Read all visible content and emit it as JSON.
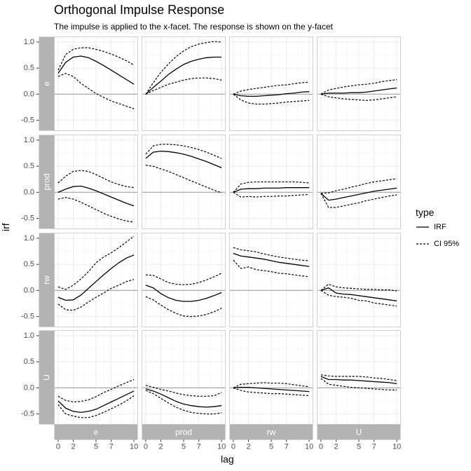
{
  "title": "Orthogonal Impulse Response",
  "subtitle": "The impulse is applied to the x-facet. The response is shown on the y-facet",
  "legend": {
    "title": "type",
    "entries": [
      {
        "label": "IRF",
        "style": "solid"
      },
      {
        "label": "CI 95%",
        "style": "dashed"
      }
    ]
  },
  "chart_data": {
    "type": "line",
    "facets": {
      "columns": [
        "e",
        "prod",
        "rw",
        "U"
      ],
      "rows": [
        "e",
        "prod",
        "rw",
        "U"
      ],
      "column_role": "impulse",
      "row_role": "response"
    },
    "xlabel": "lag",
    "ylabel": "irf",
    "xlim": [
      -0.5,
      10.5
    ],
    "ylim": [
      -0.7,
      1.1
    ],
    "xticks": [
      0,
      2,
      5,
      7,
      10
    ],
    "yticks": [
      1.0,
      0.5,
      0.0,
      -0.5
    ],
    "ytick_labels": [
      "1.0",
      "0.5",
      "0.0",
      "-0.5"
    ],
    "x": [
      0,
      1,
      2,
      3,
      4,
      5,
      6,
      7,
      8,
      9,
      10
    ],
    "zero_line": true,
    "grid": true,
    "colors": {
      "strip_bg": "#b3b3b3",
      "strip_text": "#ffffff",
      "grid_major": "#ebebeb",
      "grid_minor": "#f5f5f5",
      "zero_line": "#aaaaaa",
      "line": "#000000",
      "panel_border": "#d0d0d0"
    },
    "panels": [
      {
        "impulse": "e",
        "response": "e",
        "irf": [
          0.4,
          0.61,
          0.71,
          0.73,
          0.7,
          0.63,
          0.55,
          0.46,
          0.37,
          0.28,
          0.19
        ],
        "lower": [
          0.34,
          0.4,
          0.34,
          0.21,
          0.11,
          0.01,
          -0.06,
          -0.13,
          -0.18,
          -0.23,
          -0.28
        ],
        "upper": [
          0.46,
          0.76,
          0.86,
          0.89,
          0.89,
          0.86,
          0.82,
          0.77,
          0.71,
          0.64,
          0.56
        ]
      },
      {
        "impulse": "prod",
        "response": "e",
        "irf": [
          0.0,
          0.13,
          0.25,
          0.38,
          0.48,
          0.57,
          0.63,
          0.67,
          0.7,
          0.71,
          0.71
        ],
        "lower": [
          0.0,
          0.07,
          0.13,
          0.19,
          0.23,
          0.27,
          0.3,
          0.31,
          0.31,
          0.3,
          0.27
        ],
        "upper": [
          0.0,
          0.22,
          0.42,
          0.58,
          0.72,
          0.83,
          0.91,
          0.96,
          0.99,
          1.01,
          1.0
        ]
      },
      {
        "impulse": "rw",
        "response": "e",
        "irf": [
          0.0,
          -0.03,
          -0.04,
          -0.04,
          -0.03,
          -0.02,
          -0.01,
          0.01,
          0.02,
          0.04,
          0.05
        ],
        "lower": [
          0.0,
          -0.11,
          -0.17,
          -0.19,
          -0.19,
          -0.18,
          -0.17,
          -0.15,
          -0.14,
          -0.13,
          -0.12
        ],
        "upper": [
          0.0,
          0.06,
          0.09,
          0.11,
          0.13,
          0.15,
          0.17,
          0.18,
          0.2,
          0.22,
          0.23
        ]
      },
      {
        "impulse": "U",
        "response": "e",
        "irf": [
          0.0,
          0.02,
          0.02,
          0.02,
          0.03,
          0.03,
          0.04,
          0.06,
          0.08,
          0.1,
          0.12
        ],
        "lower": [
          0.0,
          -0.05,
          -0.07,
          -0.09,
          -0.1,
          -0.11,
          -0.12,
          -0.11,
          -0.09,
          -0.07,
          -0.05
        ],
        "upper": [
          0.0,
          0.08,
          0.11,
          0.14,
          0.16,
          0.18,
          0.19,
          0.21,
          0.24,
          0.26,
          0.28
        ]
      },
      {
        "impulse": "e",
        "response": "prod",
        "irf": [
          0.0,
          0.06,
          0.11,
          0.12,
          0.08,
          0.03,
          -0.03,
          -0.09,
          -0.15,
          -0.21,
          -0.26
        ],
        "lower": [
          -0.13,
          -0.1,
          -0.13,
          -0.19,
          -0.26,
          -0.33,
          -0.4,
          -0.46,
          -0.51,
          -0.55,
          -0.57
        ],
        "upper": [
          0.18,
          0.31,
          0.4,
          0.42,
          0.4,
          0.34,
          0.27,
          0.2,
          0.15,
          0.11,
          0.09
        ]
      },
      {
        "impulse": "prod",
        "response": "prod",
        "irf": [
          0.65,
          0.77,
          0.79,
          0.78,
          0.76,
          0.73,
          0.69,
          0.64,
          0.59,
          0.53,
          0.47
        ],
        "lower": [
          0.52,
          0.5,
          0.45,
          0.4,
          0.34,
          0.28,
          0.22,
          0.16,
          0.1,
          0.04,
          -0.01
        ],
        "upper": [
          0.73,
          0.89,
          0.92,
          0.92,
          0.91,
          0.89,
          0.86,
          0.82,
          0.77,
          0.71,
          0.65
        ]
      },
      {
        "impulse": "rw",
        "response": "prod",
        "irf": [
          0.0,
          0.06,
          0.07,
          0.07,
          0.08,
          0.08,
          0.08,
          0.09,
          0.09,
          0.09,
          0.09
        ],
        "lower": [
          0.0,
          -0.09,
          -0.08,
          -0.09,
          -0.08,
          -0.08,
          -0.07,
          -0.07,
          -0.06,
          -0.05,
          -0.04
        ],
        "upper": [
          0.0,
          0.16,
          0.19,
          0.2,
          0.2,
          0.2,
          0.2,
          0.2,
          0.2,
          0.19,
          0.18
        ]
      },
      {
        "impulse": "U",
        "response": "prod",
        "irf": [
          -0.02,
          -0.15,
          -0.13,
          -0.1,
          -0.07,
          -0.04,
          -0.01,
          0.02,
          0.04,
          0.06,
          0.08
        ],
        "lower": [
          -0.02,
          -0.29,
          -0.29,
          -0.26,
          -0.23,
          -0.2,
          -0.16,
          -0.13,
          -0.1,
          -0.07,
          -0.05
        ],
        "upper": [
          -0.02,
          -0.01,
          0.03,
          0.06,
          0.1,
          0.13,
          0.17,
          0.2,
          0.22,
          0.24,
          0.26
        ]
      },
      {
        "impulse": "e",
        "response": "rw",
        "irf": [
          -0.13,
          -0.19,
          -0.18,
          -0.09,
          0.04,
          0.17,
          0.3,
          0.42,
          0.53,
          0.62,
          0.68
        ],
        "lower": [
          -0.26,
          -0.37,
          -0.38,
          -0.32,
          -0.22,
          -0.13,
          -0.05,
          0.04,
          0.1,
          0.17,
          0.21
        ],
        "upper": [
          0.07,
          0.02,
          0.1,
          0.22,
          0.36,
          0.53,
          0.64,
          0.72,
          0.82,
          0.93,
          1.04
        ]
      },
      {
        "impulse": "prod",
        "response": "rw",
        "irf": [
          0.1,
          0.05,
          -0.06,
          -0.14,
          -0.19,
          -0.21,
          -0.21,
          -0.19,
          -0.15,
          -0.1,
          -0.04
        ],
        "lower": [
          -0.12,
          -0.18,
          -0.28,
          -0.37,
          -0.44,
          -0.49,
          -0.5,
          -0.49,
          -0.46,
          -0.41,
          -0.34
        ],
        "upper": [
          0.3,
          0.29,
          0.22,
          0.15,
          0.12,
          0.11,
          0.12,
          0.15,
          0.2,
          0.26,
          0.33
        ]
      },
      {
        "impulse": "rw",
        "response": "rw",
        "irf": [
          0.71,
          0.66,
          0.64,
          0.62,
          0.6,
          0.57,
          0.54,
          0.52,
          0.5,
          0.48,
          0.46
        ],
        "lower": [
          0.58,
          0.42,
          0.45,
          0.4,
          0.38,
          0.36,
          0.33,
          0.32,
          0.3,
          0.28,
          0.26
        ],
        "upper": [
          0.82,
          0.78,
          0.76,
          0.74,
          0.7,
          0.67,
          0.64,
          0.62,
          0.6,
          0.58,
          0.57
        ]
      },
      {
        "impulse": "U",
        "response": "rw",
        "irf": [
          0.0,
          0.05,
          -0.05,
          -0.07,
          -0.08,
          -0.1,
          -0.12,
          -0.14,
          -0.16,
          -0.18,
          -0.2
        ],
        "lower": [
          0.0,
          -0.09,
          -0.12,
          -0.13,
          -0.15,
          -0.19,
          -0.2,
          -0.24,
          -0.26,
          -0.28,
          -0.3
        ],
        "upper": [
          0.0,
          0.12,
          0.07,
          0.05,
          0.04,
          0.03,
          0.02,
          0.02,
          0.01,
          0.01,
          -0.01
        ]
      },
      {
        "impulse": "e",
        "response": "U",
        "irf": [
          -0.25,
          -0.39,
          -0.45,
          -0.47,
          -0.45,
          -0.41,
          -0.34,
          -0.27,
          -0.2,
          -0.13,
          -0.06
        ],
        "lower": [
          -0.32,
          -0.5,
          -0.54,
          -0.57,
          -0.57,
          -0.53,
          -0.47,
          -0.4,
          -0.33,
          -0.25,
          -0.15
        ],
        "upper": [
          -0.16,
          -0.24,
          -0.27,
          -0.26,
          -0.23,
          -0.17,
          -0.09,
          -0.03,
          0.04,
          0.1,
          0.16
        ]
      },
      {
        "impulse": "prod",
        "response": "U",
        "irf": [
          -0.02,
          -0.06,
          -0.12,
          -0.19,
          -0.26,
          -0.31,
          -0.34,
          -0.36,
          -0.37,
          -0.36,
          -0.34
        ],
        "lower": [
          -0.05,
          -0.11,
          -0.2,
          -0.29,
          -0.37,
          -0.43,
          -0.47,
          -0.49,
          -0.5,
          -0.5,
          -0.48
        ],
        "upper": [
          0.05,
          0.01,
          -0.03,
          -0.06,
          -0.1,
          -0.13,
          -0.15,
          -0.16,
          -0.16,
          -0.15,
          -0.09
        ]
      },
      {
        "impulse": "rw",
        "response": "U",
        "irf": [
          0.0,
          0.01,
          0.01,
          0.0,
          -0.01,
          -0.02,
          -0.03,
          -0.04,
          -0.05,
          -0.06,
          -0.07
        ],
        "lower": [
          0.0,
          -0.05,
          -0.08,
          -0.09,
          -0.1,
          -0.11,
          -0.11,
          -0.12,
          -0.13,
          -0.14,
          -0.15
        ],
        "upper": [
          0.0,
          0.07,
          0.08,
          0.09,
          0.1,
          0.09,
          0.09,
          0.08,
          0.06,
          0.04,
          0.02
        ]
      },
      {
        "impulse": "U",
        "response": "U",
        "irf": [
          0.22,
          0.16,
          0.16,
          0.15,
          0.15,
          0.14,
          0.13,
          0.12,
          0.11,
          0.1,
          0.08
        ],
        "lower": [
          0.18,
          0.07,
          0.05,
          0.03,
          0.01,
          0.0,
          -0.01,
          -0.02,
          -0.03,
          -0.04,
          -0.04
        ],
        "upper": [
          0.25,
          0.23,
          0.22,
          0.22,
          0.22,
          0.22,
          0.21,
          0.19,
          0.18,
          0.16,
          0.14
        ]
      }
    ]
  }
}
